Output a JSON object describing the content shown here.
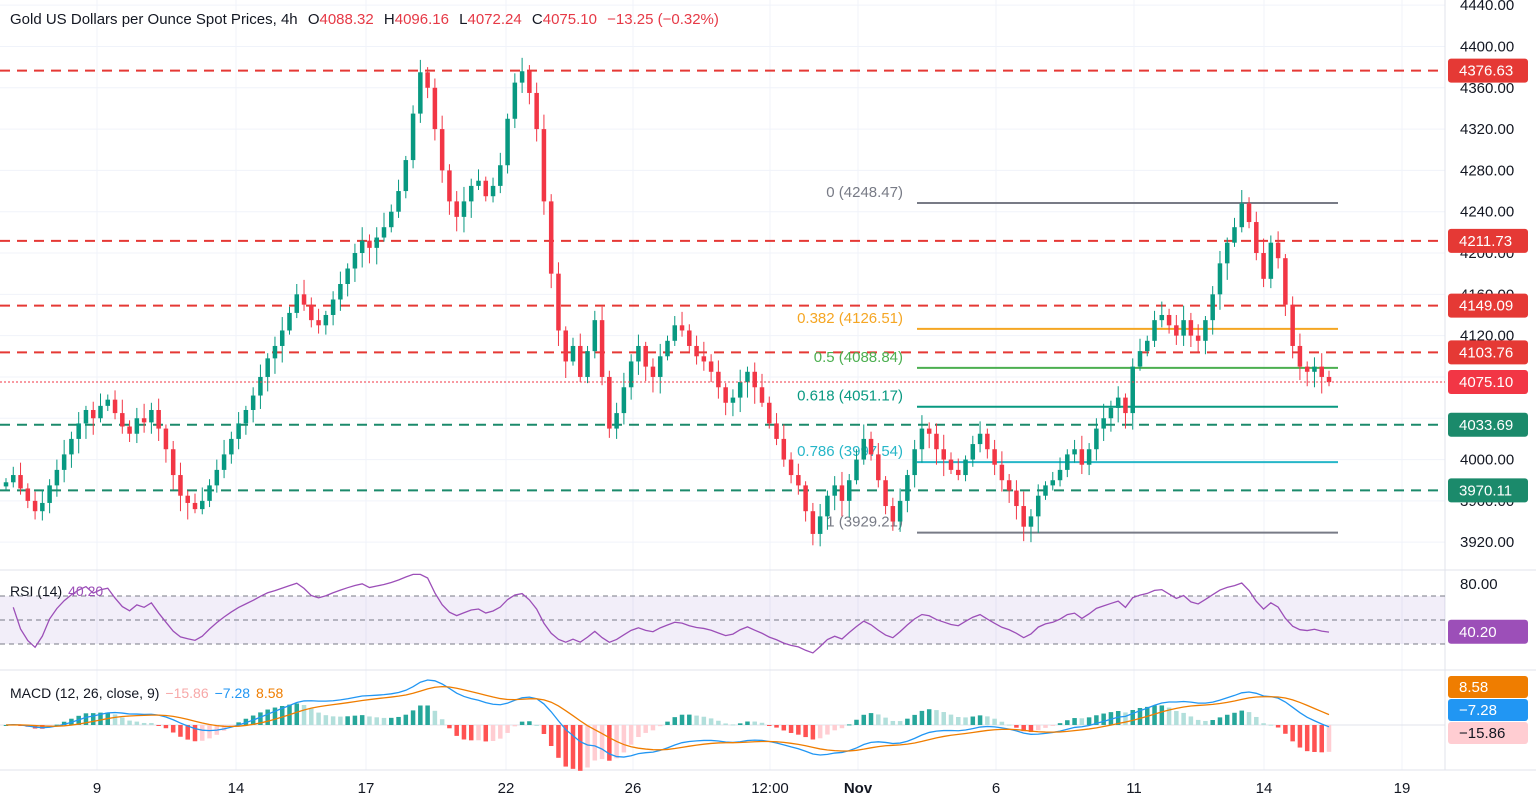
{
  "header": {
    "title": "Gold US Dollars per Ounce Spot Prices, 4h",
    "open_label": "O",
    "open": "4088.32",
    "high_label": "H",
    "high": "4096.16",
    "low_label": "L",
    "low": "4072.24",
    "close_label": "C",
    "close": "4075.10",
    "change": "−13.25 (−0.32%)"
  },
  "colors": {
    "up": "#089981",
    "down": "#f23645",
    "resistance": "#e53935",
    "support": "#1b8a6b",
    "fib_gray": "#787b86",
    "fib_orange": "#f5a623",
    "fib_green": "#4caf50",
    "fib_teal": "#089981",
    "fib_cyan": "#26b6c8",
    "rsi": "#9c4fb8",
    "macd": "#2196f3",
    "signal": "#ef7d00"
  },
  "chart_data": {
    "type": "candlestick",
    "price_axis": {
      "range": [
        3895,
        4445
      ],
      "ticks": [
        "3920.00",
        "3960.00",
        "4000.00",
        "4040.00",
        "4080.00",
        "4120.00",
        "4160.00",
        "4200.00",
        "4240.00",
        "4280.00",
        "4320.00",
        "4360.00",
        "4400.00",
        "4440.00"
      ]
    },
    "time_axis": [
      "9",
      "14",
      "17",
      "22",
      "26",
      "12:00",
      "Nov",
      "6",
      "11",
      "14",
      "19"
    ],
    "horizontal_levels": [
      {
        "value": 4376.63,
        "label": "4376.63",
        "kind": "resistance"
      },
      {
        "value": 4211.73,
        "label": "4211.73",
        "kind": "resistance"
      },
      {
        "value": 4149.09,
        "label": "4149.09",
        "kind": "resistance"
      },
      {
        "value": 4103.76,
        "label": "4103.76",
        "kind": "resistance"
      },
      {
        "value": 4033.69,
        "label": "4033.69",
        "kind": "support"
      },
      {
        "value": 3970.11,
        "label": "3970.11",
        "kind": "support"
      }
    ],
    "last_price": {
      "value": 4075.1,
      "label": "4075.10"
    },
    "fibonacci": [
      {
        "ratio": "0",
        "value": 4248.47,
        "label": "0 (4248.47)",
        "color": "#787b86"
      },
      {
        "ratio": "0.382",
        "value": 4126.51,
        "label": "0.382 (4126.51)",
        "color": "#f5a623"
      },
      {
        "ratio": "0.5",
        "value": 4088.84,
        "label": "0.5 (4088.84)",
        "color": "#4caf50"
      },
      {
        "ratio": "0.618",
        "value": 4051.17,
        "label": "0.618 (4051.17)",
        "color": "#089981"
      },
      {
        "ratio": "0.786",
        "value": 3997.54,
        "label": "0.786 (3997.54)",
        "color": "#26b6c8"
      },
      {
        "ratio": "1",
        "value": 3929.21,
        "label": "1 (3929.21)",
        "color": "#787b86"
      }
    ],
    "candle_closes": [
      3978,
      3985,
      3972,
      3960,
      3950,
      3958,
      3975,
      3990,
      4005,
      4020,
      4035,
      4048,
      4040,
      4052,
      4058,
      4045,
      4032,
      4025,
      4040,
      4036,
      4048,
      4030,
      4010,
      3985,
      3965,
      3958,
      3952,
      3960,
      3975,
      3990,
      4005,
      4020,
      4035,
      4048,
      4062,
      4080,
      4098,
      4110,
      4125,
      4142,
      4160,
      4150,
      4135,
      4130,
      4140,
      4155,
      4170,
      4185,
      4200,
      4212,
      4205,
      4215,
      4225,
      4240,
      4260,
      4290,
      4335,
      4375,
      4360,
      4320,
      4280,
      4250,
      4235,
      4250,
      4265,
      4270,
      4255,
      4265,
      4285,
      4330,
      4365,
      4376,
      4355,
      4320,
      4250,
      4180,
      4125,
      4095,
      4110,
      4080,
      4105,
      4135,
      4080,
      4030,
      4045,
      4070,
      4095,
      4110,
      4090,
      4080,
      4100,
      4115,
      4130,
      4125,
      4110,
      4100,
      4095,
      4085,
      4070,
      4055,
      4060,
      4075,
      4085,
      4070,
      4055,
      4035,
      4020,
      4000,
      3985,
      3975,
      3950,
      3928,
      3945,
      3965,
      3975,
      3960,
      3980,
      4000,
      4020,
      4005,
      3980,
      3955,
      3940,
      3960,
      3985,
      4010,
      4030,
      4025,
      4010,
      4000,
      3990,
      3985,
      4000,
      4015,
      4025,
      4010,
      3995,
      3980,
      3970,
      3955,
      3935,
      3945,
      3965,
      3975,
      3980,
      3990,
      4005,
      4010,
      3995,
      4010,
      4030,
      4040,
      4050,
      4060,
      4045,
      4090,
      4105,
      4115,
      4135,
      4140,
      4130,
      4120,
      4135,
      4120,
      4115,
      4135,
      4160,
      4190,
      4210,
      4225,
      4248,
      4230,
      4200,
      4175,
      4210,
      4195,
      4150,
      4110,
      4090,
      4085,
      4090,
      4080,
      4075
    ],
    "rsi": {
      "name": "RSI (14)",
      "value": "40.20",
      "levels": [
        70,
        50,
        30
      ],
      "axis_tick": "80.00"
    },
    "macd": {
      "name": "MACD (12, 26, close, 9)",
      "histogram": "−15.86",
      "macd": "−7.28",
      "signal": "8.58"
    }
  }
}
